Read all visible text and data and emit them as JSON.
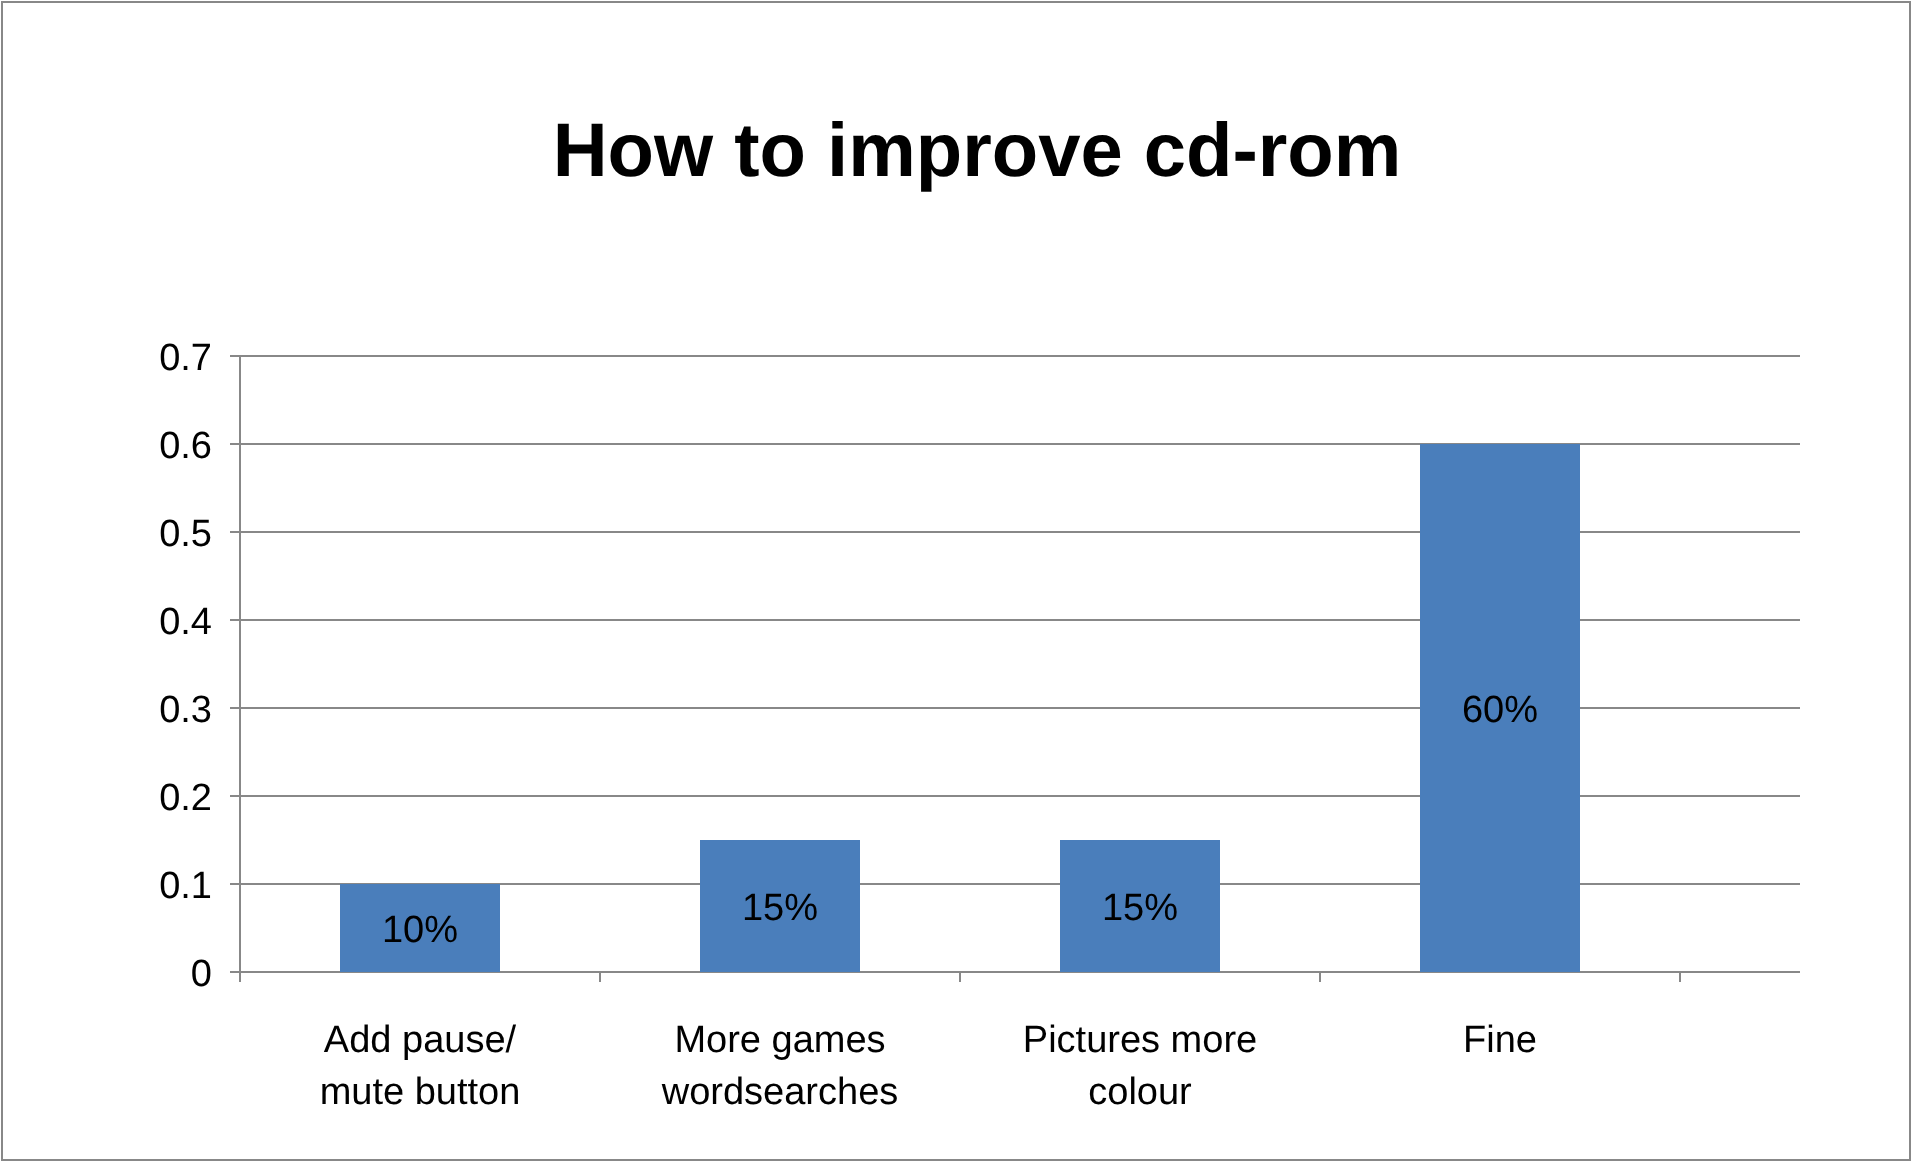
{
  "chart_data": {
    "type": "bar",
    "title": "How to improve cd-rom",
    "categories": [
      "Add pause/ mute button",
      "More games wordsearches",
      "Pictures more colour",
      "Fine"
    ],
    "values": [
      0.1,
      0.15,
      0.15,
      0.6
    ],
    "value_labels": [
      "10%",
      "15%",
      "15%",
      "60%"
    ],
    "color": "#4a7ebb",
    "ylim": [
      0,
      0.7
    ],
    "yticks": [
      0,
      0.1,
      0.2,
      0.3,
      0.4,
      0.5,
      0.6,
      0.7
    ],
    "grid": "y"
  }
}
